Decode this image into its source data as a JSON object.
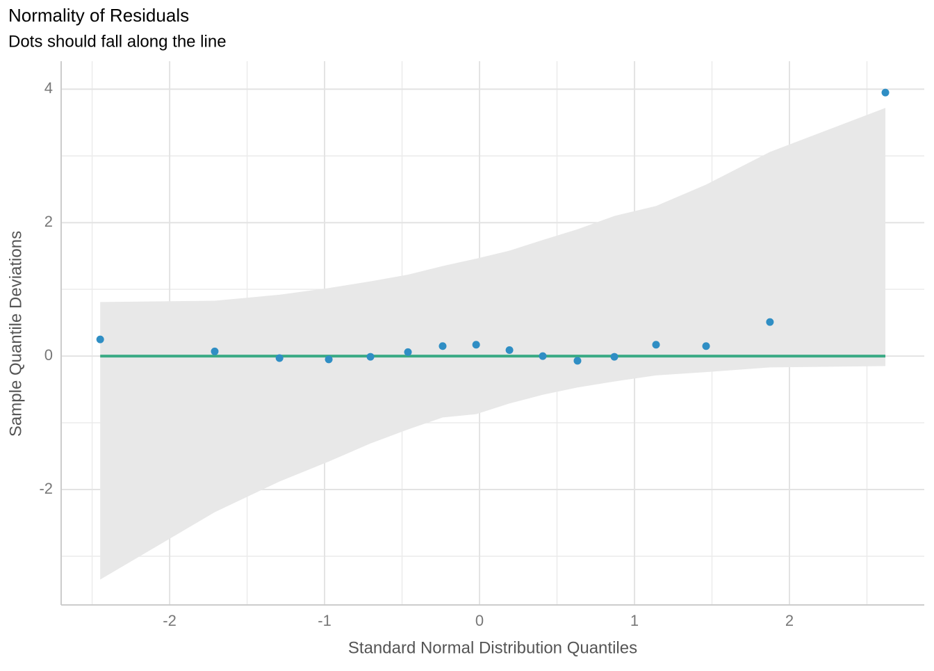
{
  "chart_data": {
    "type": "scatter",
    "title": "Normality of Residuals",
    "subtitle": "Dots should fall along the line",
    "x_label": "Standard Normal Distribution Quantiles",
    "y_label": "Sample Quantile Deviations",
    "x": [
      -2.448,
      -1.709,
      -1.291,
      -0.973,
      -0.704,
      -0.462,
      -0.238,
      -0.022,
      0.193,
      0.408,
      0.632,
      0.87,
      1.139,
      1.462,
      1.874,
      2.619
    ],
    "values": [
      0.25,
      0.07,
      -0.03,
      -0.05,
      -0.01,
      0.06,
      0.15,
      0.17,
      0.09,
      0.0,
      -0.07,
      -0.01,
      0.17,
      0.15,
      0.51,
      3.95
    ],
    "color": "#2f8ec4",
    "band": {
      "upper": [
        0.81,
        0.83,
        0.92,
        1.02,
        1.12,
        1.22,
        1.35,
        1.46,
        1.58,
        1.74,
        1.9,
        2.1,
        2.25,
        2.57,
        3.06,
        3.72
      ],
      "lower": [
        -3.35,
        -2.34,
        -1.88,
        -1.58,
        -1.31,
        -1.1,
        -0.92,
        -0.87,
        -0.71,
        -0.58,
        -0.47,
        -0.38,
        -0.29,
        -0.24,
        -0.17,
        -0.15
      ],
      "color": "#e8e8e8"
    },
    "reference_line": {
      "x": [
        -2.448,
        2.619
      ],
      "values": [
        0,
        0
      ],
      "color": "#3aaa85"
    },
    "xlim": [
      -2.7,
      2.87
    ],
    "ylim": [
      -3.73,
      4.42
    ],
    "xticks": [
      -2,
      -1,
      0,
      1,
      2
    ],
    "yticks": [
      -2,
      0,
      2,
      4
    ],
    "minor_xticks": [
      -2.5,
      -1.5,
      -0.5,
      0.5,
      1.5,
      2.5
    ],
    "minor_yticks": [
      -3,
      -1,
      1,
      3
    ],
    "grid": true
  }
}
